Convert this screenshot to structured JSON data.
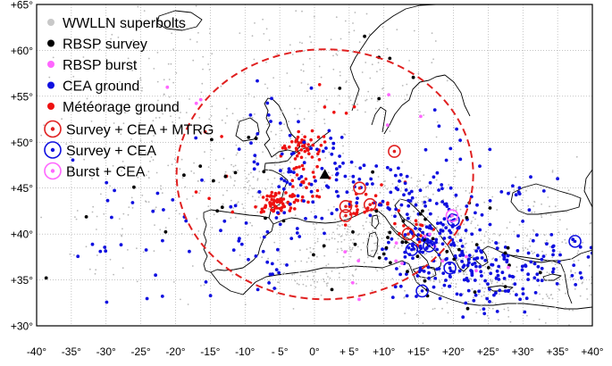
{
  "map": {
    "lon_range": [
      -40,
      40
    ],
    "lat_range": [
      30,
      65
    ],
    "grid": "dotted",
    "x_ticks": [
      {
        "value": -40,
        "label": "-40°"
      },
      {
        "value": -35,
        "label": "-35°"
      },
      {
        "value": -30,
        "label": "-30°"
      },
      {
        "value": -25,
        "label": "-25°"
      },
      {
        "value": -20,
        "label": "-20°"
      },
      {
        "value": -15,
        "label": "-15°"
      },
      {
        "value": -10,
        "label": "-10°"
      },
      {
        "value": -5,
        "label": "- 5°"
      },
      {
        "value": 0,
        "label": "0°"
      },
      {
        "value": 5,
        "label": "+ 5°"
      },
      {
        "value": 10,
        "label": "+10°"
      },
      {
        "value": 15,
        "label": "+15°"
      },
      {
        "value": 20,
        "label": "+20°"
      },
      {
        "value": 25,
        "label": "+25°"
      },
      {
        "value": 30,
        "label": "+30°"
      },
      {
        "value": 35,
        "label": "+35°"
      },
      {
        "value": 40,
        "label": "+40°"
      }
    ],
    "y_ticks": [
      {
        "value": 65,
        "label": "+65°"
      },
      {
        "value": 60,
        "label": "+60°"
      },
      {
        "value": 55,
        "label": "+55°"
      },
      {
        "value": 50,
        "label": "+50°"
      },
      {
        "value": 45,
        "label": "+45°"
      },
      {
        "value": 40,
        "label": "+40°"
      },
      {
        "value": 35,
        "label": "+35°"
      },
      {
        "value": 30,
        "label": "+30°"
      }
    ],
    "center_marker": {
      "lon": 1.5,
      "lat": 46.5,
      "symbol": "triangle",
      "color": "#000000"
    },
    "range_circle": {
      "center_lon": 1.5,
      "center_lat": 46.5,
      "color": "#e02020",
      "style": "dashed"
    },
    "colors": {
      "wwlln": "#b8b8b8",
      "rbsp_survey": "#000000",
      "rbsp_burst": "#ff66ff",
      "cea": "#1010e0",
      "meteorage": "#ee1111",
      "coast": "#000000"
    }
  },
  "legend": {
    "placement": "top-left",
    "items": [
      {
        "label": "WWLLN superbolts",
        "marker": "dot",
        "color": "#c8c8c8"
      },
      {
        "label": "RBSP survey",
        "marker": "dot",
        "color": "#000000"
      },
      {
        "label": "RBSP burst",
        "marker": "dot",
        "color": "#ff66ff"
      },
      {
        "label": "CEA ground",
        "marker": "dot",
        "color": "#1010e0"
      },
      {
        "label": "Météorage ground",
        "marker": "dot",
        "color": "#ee1111"
      },
      {
        "label": "Survey + CEA + MTRG",
        "marker": "ring",
        "color": "#e02020"
      },
      {
        "label": "Survey + CEA",
        "marker": "ring",
        "color": "#1010e0"
      },
      {
        "label": "Burst + CEA",
        "marker": "ring",
        "color": "#ff66ff"
      }
    ]
  },
  "coincidences": [
    {
      "type": "Survey + CEA + MTRG",
      "lon": 11.5,
      "lat": 49.0
    },
    {
      "type": "Survey + CEA + MTRG",
      "lon": 6.5,
      "lat": 45.0
    },
    {
      "type": "Survey + CEA + MTRG",
      "lon": 4.5,
      "lat": 43.0
    },
    {
      "type": "Survey + CEA + MTRG",
      "lon": 4.5,
      "lat": 42.0
    },
    {
      "type": "Survey + CEA + MTRG",
      "lon": 8.0,
      "lat": 43.2
    },
    {
      "type": "Survey + CEA + MTRG",
      "lon": 13.5,
      "lat": 40.0
    },
    {
      "type": "Survey + CEA",
      "lon": 20.0,
      "lat": 41.5
    },
    {
      "type": "Survey + CEA",
      "lon": 14.0,
      "lat": 38.3
    },
    {
      "type": "Survey + CEA",
      "lon": 16.5,
      "lat": 38.7
    },
    {
      "type": "Survey + CEA",
      "lon": 19.5,
      "lat": 36.3
    },
    {
      "type": "Survey + CEA",
      "lon": 15.5,
      "lat": 33.8
    },
    {
      "type": "Survey + CEA",
      "lon": 37.5,
      "lat": 39.2
    },
    {
      "type": "Burst + CEA",
      "lon": 19.8,
      "lat": 42.0
    }
  ]
}
